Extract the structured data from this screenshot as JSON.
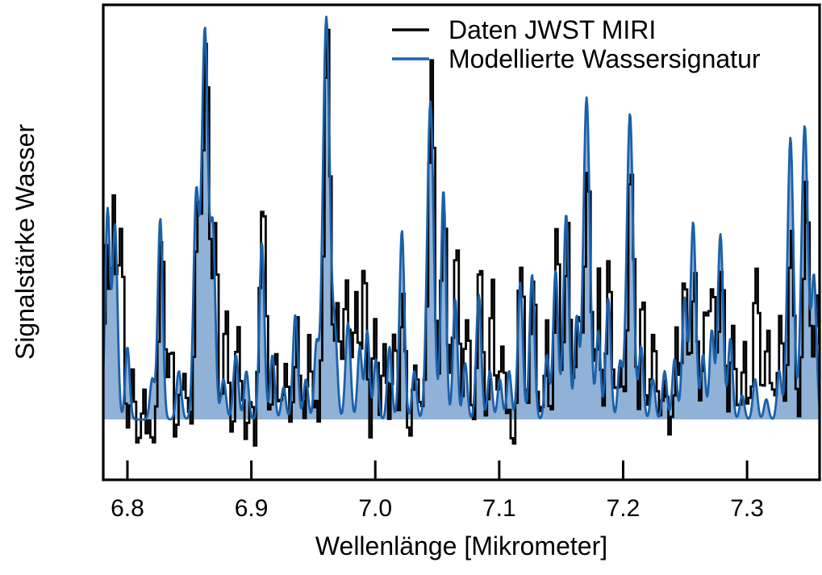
{
  "chart_data": {
    "type": "line",
    "title": "",
    "xlabel": "Wellenlänge [Mikrometer]",
    "ylabel": "Signalstärke Wasser",
    "xlim": [
      6.7805,
      7.3585
    ],
    "ylim": [
      -0.15,
      1.03
    ],
    "baseline": 0,
    "grid": false,
    "y_ticks": "none",
    "tick_direction": "in",
    "xtick_values": [
      6.8,
      6.9,
      7.0,
      7.1,
      7.2,
      7.3
    ],
    "xtick_labels": [
      "6.8",
      "6.9",
      "7.0",
      "7.1",
      "7.2",
      "7.3"
    ],
    "frame_color": "#000000",
    "legend": {
      "position": "upper-right",
      "frame": false
    },
    "series": [
      {
        "name": "Daten JWST MIRI",
        "style": "step",
        "color": "#000000",
        "line_width": 2.8,
        "step_microns": 0.0019,
        "noise_amplitude": 0.055,
        "peaks_wavelength_height_sigma": [
          [
            6.7825,
            0.38,
            0.002
          ],
          [
            6.788,
            0.52,
            0.002
          ],
          [
            6.794,
            0.5,
            0.002
          ],
          [
            6.8035,
            0.15,
            0.0018
          ],
          [
            6.8135,
            0.12,
            0.0018
          ],
          [
            6.827,
            0.52,
            0.002
          ],
          [
            6.8345,
            0.1,
            0.0018
          ],
          [
            6.8435,
            0.13,
            0.0018
          ],
          [
            6.856,
            0.52,
            0.0022
          ],
          [
            6.8625,
            0.91,
            0.0026
          ],
          [
            6.87,
            0.46,
            0.002
          ],
          [
            6.879,
            0.22,
            0.0018
          ],
          [
            6.8885,
            0.26,
            0.0018
          ],
          [
            6.9085,
            0.63,
            0.0024
          ],
          [
            6.9185,
            0.2,
            0.0018
          ],
          [
            6.9275,
            0.14,
            0.0018
          ],
          [
            6.9365,
            0.3,
            0.002
          ],
          [
            6.9465,
            0.18,
            0.0018
          ],
          [
            6.9605,
            0.92,
            0.0026
          ],
          [
            6.9685,
            0.26,
            0.0018
          ],
          [
            6.976,
            0.34,
            0.002
          ],
          [
            6.984,
            0.36,
            0.002
          ],
          [
            6.9905,
            0.36,
            0.002
          ],
          [
            6.9985,
            0.28,
            0.0018
          ],
          [
            7.0065,
            0.2,
            0.0018
          ],
          [
            7.0145,
            0.22,
            0.0018
          ],
          [
            7.0215,
            0.4,
            0.002
          ],
          [
            7.0305,
            0.18,
            0.0018
          ],
          [
            7.0445,
            0.91,
            0.0026
          ],
          [
            7.0545,
            0.55,
            0.0022
          ],
          [
            7.0645,
            0.45,
            0.002
          ],
          [
            7.0735,
            0.25,
            0.0018
          ],
          [
            7.0835,
            0.41,
            0.002
          ],
          [
            7.0935,
            0.33,
            0.0018
          ],
          [
            7.1015,
            0.18,
            0.0018
          ],
          [
            7.117,
            0.48,
            0.0022
          ],
          [
            7.127,
            0.4,
            0.002
          ],
          [
            7.1375,
            0.25,
            0.0018
          ],
          [
            7.1455,
            0.45,
            0.0022
          ],
          [
            7.1545,
            0.46,
            0.0022
          ],
          [
            7.1635,
            0.28,
            0.0018
          ],
          [
            7.1705,
            0.68,
            0.0024
          ],
          [
            7.1795,
            0.3,
            0.0018
          ],
          [
            7.188,
            0.38,
            0.002
          ],
          [
            7.1965,
            0.18,
            0.0018
          ],
          [
            7.2055,
            0.66,
            0.0024
          ],
          [
            7.215,
            0.3,
            0.0018
          ],
          [
            7.2245,
            0.22,
            0.0018
          ],
          [
            7.2335,
            0.18,
            0.0018
          ],
          [
            7.2425,
            0.2,
            0.0018
          ],
          [
            7.249,
            0.41,
            0.002
          ],
          [
            7.257,
            0.45,
            0.002
          ],
          [
            7.2655,
            0.2,
            0.0018
          ],
          [
            7.2715,
            0.35,
            0.002
          ],
          [
            7.279,
            0.4,
            0.002
          ],
          [
            7.2875,
            0.28,
            0.0018
          ],
          [
            7.2965,
            0.18,
            0.0018
          ],
          [
            7.3065,
            0.38,
            0.002
          ],
          [
            7.3155,
            0.2,
            0.0018
          ],
          [
            7.3265,
            0.25,
            0.0018
          ],
          [
            7.335,
            0.55,
            0.0022
          ],
          [
            7.347,
            0.61,
            0.0024
          ],
          [
            7.3555,
            0.32,
            0.002
          ]
        ]
      },
      {
        "name": "Modellierte Wassersignatur",
        "style": "line-filled",
        "color": "#1b60aa",
        "fill_color": "#8fb2d6",
        "line_width": 2.8,
        "sample_step_microns": 0.0006,
        "peaks_wavelength_height_sigma": [
          [
            6.784,
            0.52,
            0.002
          ],
          [
            6.79,
            0.48,
            0.002
          ],
          [
            6.8,
            0.18,
            0.0018
          ],
          [
            6.82,
            0.1,
            0.0018
          ],
          [
            6.8265,
            0.5,
            0.002
          ],
          [
            6.8415,
            0.12,
            0.002
          ],
          [
            6.8555,
            0.55,
            0.0022
          ],
          [
            6.8625,
            0.97,
            0.0026
          ],
          [
            6.869,
            0.45,
            0.002
          ],
          [
            6.8775,
            0.1,
            0.002
          ],
          [
            6.8875,
            0.16,
            0.002
          ],
          [
            6.896,
            0.12,
            0.0018
          ],
          [
            6.9085,
            0.44,
            0.002
          ],
          [
            6.917,
            0.16,
            0.0018
          ],
          [
            6.926,
            0.08,
            0.0018
          ],
          [
            6.9355,
            0.26,
            0.002
          ],
          [
            6.944,
            0.1,
            0.0018
          ],
          [
            6.9525,
            0.18,
            0.0018
          ],
          [
            6.9605,
            1.0,
            0.0028
          ],
          [
            6.9675,
            0.2,
            0.002
          ],
          [
            6.978,
            0.24,
            0.002
          ],
          [
            6.9875,
            0.18,
            0.0018
          ],
          [
            6.9935,
            0.22,
            0.0018
          ],
          [
            7.0005,
            0.15,
            0.0018
          ],
          [
            7.0115,
            0.18,
            0.0018
          ],
          [
            7.0215,
            0.47,
            0.002
          ],
          [
            7.0315,
            0.12,
            0.0018
          ],
          [
            7.0445,
            0.79,
            0.0026
          ],
          [
            7.055,
            0.57,
            0.002
          ],
          [
            7.0645,
            0.3,
            0.0018
          ],
          [
            7.0725,
            0.14,
            0.0018
          ],
          [
            7.0835,
            0.31,
            0.002
          ],
          [
            7.0925,
            0.12,
            0.0018
          ],
          [
            7.1005,
            0.1,
            0.0018
          ],
          [
            7.108,
            0.12,
            0.0018
          ],
          [
            7.117,
            0.34,
            0.002
          ],
          [
            7.1265,
            0.36,
            0.002
          ],
          [
            7.1385,
            0.16,
            0.0018
          ],
          [
            7.1455,
            0.37,
            0.002
          ],
          [
            7.154,
            0.51,
            0.0022
          ],
          [
            7.1625,
            0.25,
            0.0018
          ],
          [
            7.1705,
            0.8,
            0.0026
          ],
          [
            7.18,
            0.22,
            0.0018
          ],
          [
            7.188,
            0.3,
            0.002
          ],
          [
            7.1975,
            0.14,
            0.0018
          ],
          [
            7.2055,
            0.76,
            0.0026
          ],
          [
            7.2145,
            0.18,
            0.0018
          ],
          [
            7.224,
            0.1,
            0.0018
          ],
          [
            7.2335,
            0.12,
            0.0018
          ],
          [
            7.2415,
            0.15,
            0.0018
          ],
          [
            7.2495,
            0.3,
            0.002
          ],
          [
            7.2565,
            0.49,
            0.0022
          ],
          [
            7.2645,
            0.16,
            0.0018
          ],
          [
            7.2715,
            0.22,
            0.0018
          ],
          [
            7.2785,
            0.46,
            0.0022
          ],
          [
            7.2865,
            0.2,
            0.0018
          ],
          [
            7.296,
            0.06,
            0.0018
          ],
          [
            7.3065,
            0.1,
            0.0018
          ],
          [
            7.3155,
            0.05,
            0.0018
          ],
          [
            7.326,
            0.12,
            0.0018
          ],
          [
            7.335,
            0.7,
            0.0024
          ],
          [
            7.3465,
            0.73,
            0.0026
          ],
          [
            7.354,
            0.35,
            0.002
          ]
        ]
      }
    ]
  }
}
